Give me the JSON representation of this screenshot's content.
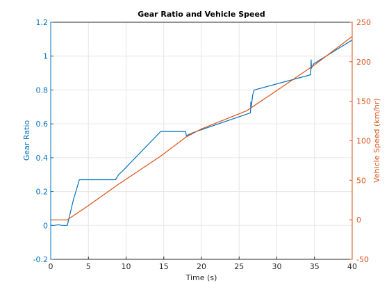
{
  "chart_data": {
    "type": "line",
    "title": "Gear Ratio and Vehicle Speed",
    "xlabel": "Time (s)",
    "xlim": [
      0,
      40
    ],
    "xticks": [
      0,
      5,
      10,
      15,
      20,
      25,
      30,
      35,
      40
    ],
    "grid": true,
    "axes": {
      "left": {
        "label": "Gear Ratio",
        "color": "#0072BD",
        "ylim": [
          -0.2,
          1.2
        ],
        "ticks": [
          -0.2,
          0,
          0.2,
          0.4,
          0.6,
          0.8,
          1,
          1.2
        ]
      },
      "right": {
        "label": "Vehicle Speed (km/hr)",
        "color": "#D95319",
        "ylim": [
          -50,
          250
        ],
        "ticks": [
          -50,
          0,
          50,
          100,
          150,
          200,
          250
        ]
      }
    },
    "series": [
      {
        "axis": "left",
        "color": "#0072BD",
        "points": [
          [
            0,
            0.0
          ],
          [
            0.5,
            0.0
          ],
          [
            1.0,
            0.005
          ],
          [
            1.5,
            0.0
          ],
          [
            2.0,
            0.0
          ],
          [
            2.2,
            0.0
          ],
          [
            3.0,
            0.15
          ],
          [
            3.8,
            0.27
          ],
          [
            4.0,
            0.27
          ],
          [
            6.0,
            0.27
          ],
          [
            8.6,
            0.27
          ],
          [
            9.0,
            0.3
          ],
          [
            9.5,
            0.32
          ],
          [
            14.6,
            0.555
          ],
          [
            17.0,
            0.555
          ],
          [
            17.9,
            0.555
          ],
          [
            18.0,
            0.53
          ],
          [
            19.0,
            0.55
          ],
          [
            26.5,
            0.665
          ],
          [
            26.55,
            0.73
          ],
          [
            26.6,
            0.7
          ],
          [
            26.8,
            0.77
          ],
          [
            27.0,
            0.8
          ],
          [
            34.5,
            0.89
          ],
          [
            34.55,
            0.98
          ],
          [
            34.6,
            0.93
          ],
          [
            34.9,
            0.955
          ],
          [
            40,
            1.095
          ]
        ]
      },
      {
        "axis": "right",
        "color": "#D95319",
        "points": [
          [
            0,
            0.0
          ],
          [
            2.2,
            0.0
          ],
          [
            5.0,
            18.0
          ],
          [
            9.0,
            45.0
          ],
          [
            14.5,
            80.0
          ],
          [
            18.0,
            105.0
          ],
          [
            20.0,
            115.0
          ],
          [
            26.0,
            138.0
          ],
          [
            31.0,
            170.0
          ],
          [
            35.0,
            196.0
          ],
          [
            40,
            232.0
          ]
        ]
      }
    ]
  }
}
